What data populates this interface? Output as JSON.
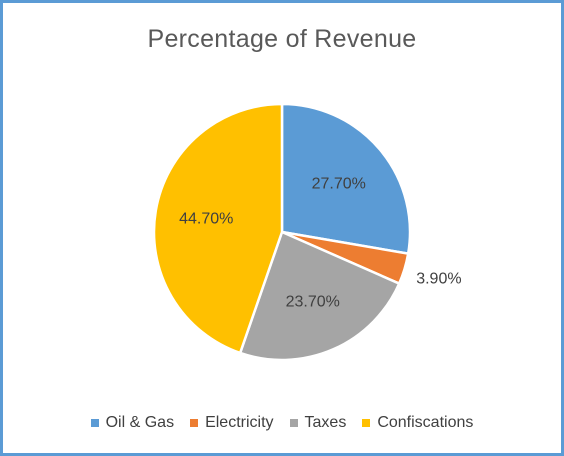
{
  "chart_data": {
    "type": "pie",
    "title": "Percentage of Revenue",
    "legend_position": "bottom",
    "slices": [
      {
        "name": "Oil & Gas",
        "value": 27.7,
        "label": "27.70%",
        "color": "#5b9bd5"
      },
      {
        "name": "Electricity",
        "value": 3.9,
        "label": "3.90%",
        "color": "#ed7d31"
      },
      {
        "name": "Taxes",
        "value": 23.7,
        "label": "23.70%",
        "color": "#a5a5a5"
      },
      {
        "name": "Confiscations",
        "value": 44.7,
        "label": "44.70%",
        "color": "#ffc000"
      }
    ]
  },
  "frame_color": "#5b9bd5"
}
